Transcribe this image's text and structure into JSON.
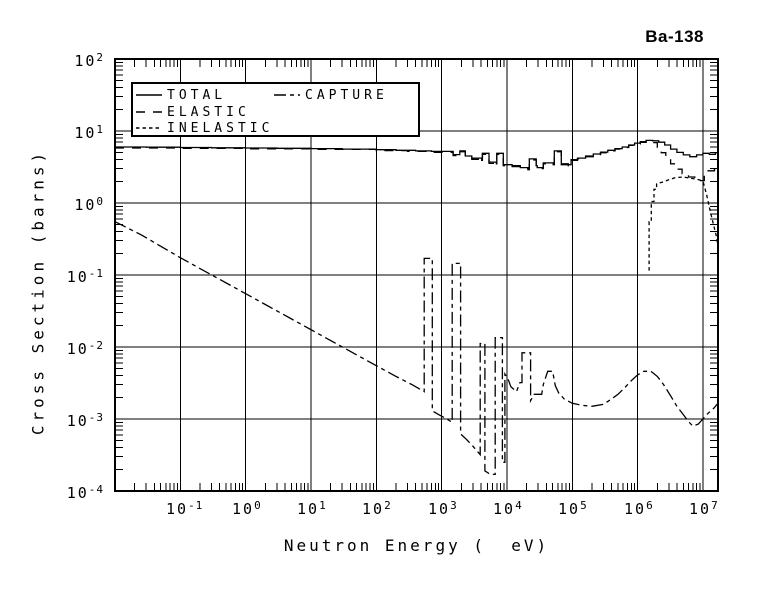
{
  "title": "Ba-138",
  "chart_data": {
    "type": "line",
    "title": "Ba-138",
    "xlabel": "Neutron Energy (  eV)",
    "ylabel": "Cross Section (barns)",
    "xscale": "log",
    "yscale": "log",
    "xlim": [
      0.01,
      17000000
    ],
    "ylim": [
      0.0001,
      100
    ],
    "x_tick_exps": [
      -1,
      0,
      1,
      2,
      3,
      4,
      5,
      6,
      7
    ],
    "y_tick_exps": [
      2,
      1,
      0,
      -1,
      -2,
      -3,
      -4
    ],
    "grid": true,
    "legend_position": "top-left",
    "line_color": "#000000",
    "series": [
      {
        "name": "TOTAL",
        "style": "solid",
        "draw": "step",
        "points": [
          [
            0.01,
            6.0
          ],
          [
            0.03,
            5.95
          ],
          [
            0.1,
            5.9
          ],
          [
            0.3,
            5.85
          ],
          [
            1,
            5.8
          ],
          [
            3,
            5.75
          ],
          [
            10,
            5.7
          ],
          [
            30,
            5.6
          ],
          [
            100,
            5.5
          ],
          [
            200,
            5.4
          ],
          [
            400,
            5.3
          ],
          [
            700,
            5.2
          ],
          [
            1000,
            5.2
          ],
          [
            1500,
            4.7
          ],
          [
            1900,
            5.3
          ],
          [
            2300,
            4.5
          ],
          [
            2900,
            4.2
          ],
          [
            4100,
            3.9
          ],
          [
            4200,
            4.9
          ],
          [
            5300,
            3.7
          ],
          [
            6900,
            3.5
          ],
          [
            7000,
            4.9
          ],
          [
            8800,
            3.4
          ],
          [
            12000,
            3.3
          ],
          [
            16000,
            3.1
          ],
          [
            21000,
            3.0
          ],
          [
            22000,
            4.1
          ],
          [
            28000,
            3.3
          ],
          [
            29000,
            3.1
          ],
          [
            36000,
            3.6
          ],
          [
            51000,
            3.5
          ],
          [
            53000,
            5.3
          ],
          [
            68000,
            3.5
          ],
          [
            87000,
            3.4
          ],
          [
            96000,
            4.0
          ],
          [
            120000,
            4.2
          ],
          [
            160000,
            4.5
          ],
          [
            210000,
            4.8
          ],
          [
            270000,
            5.1
          ],
          [
            350000,
            5.4
          ],
          [
            450000,
            5.7
          ],
          [
            580000,
            6.0
          ],
          [
            730000,
            6.4
          ],
          [
            900000,
            6.8
          ],
          [
            1100000,
            7.1
          ],
          [
            1350000,
            7.4
          ],
          [
            1700000,
            7.3
          ],
          [
            2100000,
            7.0
          ],
          [
            2600000,
            6.4
          ],
          [
            3200000,
            5.6
          ],
          [
            4000000,
            5.05
          ],
          [
            5000000,
            4.65
          ],
          [
            6300000,
            4.4
          ],
          [
            8000000,
            4.65
          ],
          [
            10000000,
            4.9
          ],
          [
            12500000,
            4.75
          ],
          [
            15500000,
            5.0
          ],
          [
            17000000,
            5.3
          ]
        ]
      },
      {
        "name": "ELASTIC",
        "style": "long-dash",
        "draw": "step",
        "points": [
          [
            0.01,
            5.8
          ],
          [
            0.1,
            5.75
          ],
          [
            1,
            5.65
          ],
          [
            10,
            5.55
          ],
          [
            100,
            5.35
          ],
          [
            300,
            5.2
          ],
          [
            700,
            5.05
          ],
          [
            1500,
            4.55
          ],
          [
            1900,
            5.15
          ],
          [
            2300,
            4.35
          ],
          [
            2900,
            4.05
          ],
          [
            4100,
            3.75
          ],
          [
            4200,
            4.75
          ],
          [
            5300,
            3.55
          ],
          [
            6900,
            3.4
          ],
          [
            7000,
            4.75
          ],
          [
            8800,
            3.3
          ],
          [
            12000,
            3.2
          ],
          [
            16000,
            3.0
          ],
          [
            21000,
            2.9
          ],
          [
            22000,
            3.95
          ],
          [
            28000,
            3.2
          ],
          [
            29000,
            3.0
          ],
          [
            36000,
            3.5
          ],
          [
            51000,
            3.4
          ],
          [
            53000,
            5.15
          ],
          [
            68000,
            3.4
          ],
          [
            87000,
            3.3
          ],
          [
            96000,
            3.9
          ],
          [
            120000,
            4.1
          ],
          [
            160000,
            4.4
          ],
          [
            210000,
            4.7
          ],
          [
            270000,
            5.0
          ],
          [
            350000,
            5.3
          ],
          [
            450000,
            5.6
          ],
          [
            580000,
            5.9
          ],
          [
            730000,
            6.3
          ],
          [
            900000,
            6.65
          ],
          [
            1100000,
            6.95
          ],
          [
            1350000,
            7.2
          ],
          [
            1700000,
            6.9
          ],
          [
            2000000,
            5.9
          ],
          [
            2300000,
            5.0
          ],
          [
            2700000,
            4.2
          ],
          [
            3200000,
            3.5
          ],
          [
            3900000,
            2.95
          ],
          [
            4800000,
            2.55
          ],
          [
            6000000,
            2.3
          ],
          [
            7500000,
            2.1
          ],
          [
            9200000,
            2.05
          ],
          [
            10500000,
            2.6
          ],
          [
            12000000,
            2.8
          ],
          [
            15000000,
            2.9
          ],
          [
            17000000,
            2.9
          ]
        ]
      },
      {
        "name": "INELASTIC",
        "style": "fine-dash",
        "draw": "linear",
        "points": [
          [
            1500000,
            0.115
          ],
          [
            1500000,
            0.55
          ],
          [
            1620000,
            0.55
          ],
          [
            1620000,
            1.05
          ],
          [
            1780000,
            1.05
          ],
          [
            1780000,
            1.55
          ],
          [
            1950000,
            1.55
          ],
          [
            1950000,
            1.85
          ],
          [
            2400000,
            1.95
          ],
          [
            3000000,
            2.1
          ],
          [
            3800000,
            2.25
          ],
          [
            5000000,
            2.3
          ],
          [
            6500000,
            2.2
          ],
          [
            8000000,
            2.15
          ],
          [
            9500000,
            2.05
          ],
          [
            10200000,
            1.9
          ],
          [
            11500000,
            1.25
          ],
          [
            13000000,
            0.75
          ],
          [
            14500000,
            0.5
          ],
          [
            16000000,
            0.35
          ],
          [
            17000000,
            0.25
          ]
        ]
      },
      {
        "name": "CAPTURE",
        "style": "dash-dot",
        "draw": "linear",
        "points": [
          [
            0.01,
            0.55
          ],
          [
            0.0253,
            0.36
          ],
          [
            0.1,
            0.174
          ],
          [
            1,
            0.055
          ],
          [
            10,
            0.0174
          ],
          [
            100,
            0.0055
          ],
          [
            200,
            0.0039
          ],
          [
            350,
            0.003
          ],
          [
            540,
            0.0024
          ],
          [
            540,
            0.17
          ],
          [
            720,
            0.17
          ],
          [
            720,
            0.0013
          ],
          [
            900,
            0.00115
          ],
          [
            1200,
            0.001
          ],
          [
            1450,
            0.0009
          ],
          [
            1450,
            0.145
          ],
          [
            1950,
            0.145
          ],
          [
            1950,
            0.00062
          ],
          [
            2400,
            0.00052
          ],
          [
            3000,
            0.00042
          ],
          [
            3900,
            0.00032
          ],
          [
            3900,
            0.0112
          ],
          [
            4600,
            0.0112
          ],
          [
            4600,
            0.00019
          ],
          [
            5600,
            0.00017
          ],
          [
            6600,
            0.00017
          ],
          [
            6600,
            0.0135
          ],
          [
            8500,
            0.0135
          ],
          [
            8500,
            0.00025
          ],
          [
            9300,
            0.00025
          ],
          [
            9300,
            0.0042
          ],
          [
            10500,
            0.0035
          ],
          [
            11500,
            0.0028
          ],
          [
            14000,
            0.0024
          ],
          [
            15800,
            0.0032
          ],
          [
            17000,
            0.0032
          ],
          [
            17000,
            0.0083
          ],
          [
            23000,
            0.0083
          ],
          [
            23000,
            0.0018
          ],
          [
            26000,
            0.0022
          ],
          [
            34000,
            0.0022
          ],
          [
            36000,
            0.003
          ],
          [
            42000,
            0.0046
          ],
          [
            50000,
            0.0046
          ],
          [
            55000,
            0.0029
          ],
          [
            62000,
            0.0023
          ],
          [
            75000,
            0.0019
          ],
          [
            100000,
            0.00165
          ],
          [
            140000,
            0.00155
          ],
          [
            200000,
            0.0015
          ],
          [
            300000,
            0.0016
          ],
          [
            400000,
            0.0019
          ],
          [
            500000,
            0.0022
          ],
          [
            630000,
            0.0027
          ],
          [
            800000,
            0.0034
          ],
          [
            1000000,
            0.0041
          ],
          [
            1250000,
            0.0046
          ],
          [
            1600000,
            0.0046
          ],
          [
            2000000,
            0.0039
          ],
          [
            2500000,
            0.003
          ],
          [
            3200000,
            0.0021
          ],
          [
            4000000,
            0.0015
          ],
          [
            5000000,
            0.00115
          ],
          [
            6000000,
            0.00092
          ],
          [
            7000000,
            0.0008
          ],
          [
            8500000,
            0.00085
          ],
          [
            10000000,
            0.001
          ],
          [
            12000000,
            0.0012
          ],
          [
            14500000,
            0.0014
          ],
          [
            17000000,
            0.00165
          ]
        ]
      }
    ]
  }
}
